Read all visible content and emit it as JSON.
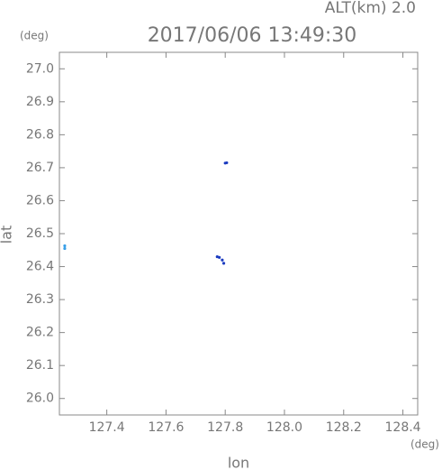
{
  "chart_data": {
    "type": "scatter",
    "title": "2017/06/06 13:49:30",
    "annotation": "ALT(km) 2.0",
    "y_unit": "(deg)",
    "x_unit": "(deg)",
    "x_label": "lon",
    "y_label": "lat",
    "xlim": [
      127.24,
      128.45
    ],
    "ylim": [
      25.95,
      27.05
    ],
    "xticks": [
      127.4,
      127.6,
      127.8,
      {
        "value": 128.0,
        "label": "128.0"
      },
      128.2,
      128.4
    ],
    "yticks": [
      {
        "value": 26.0,
        "label": "26.0"
      },
      26.1,
      26.2,
      26.3,
      26.4,
      26.5,
      26.6,
      26.7,
      26.8,
      26.9,
      {
        "value": 27.0,
        "label": "27.0"
      }
    ],
    "series": [
      {
        "color": "#1c3cc0",
        "x": [
          127.8,
          127.805,
          127.773,
          127.78,
          127.79,
          127.795
        ],
        "values": [
          26.714,
          26.715,
          26.43,
          26.428,
          26.42,
          26.41
        ]
      },
      {
        "color": "#3aa0e8",
        "x": [
          127.258,
          127.258
        ],
        "values": [
          26.463,
          26.455
        ]
      }
    ]
  }
}
